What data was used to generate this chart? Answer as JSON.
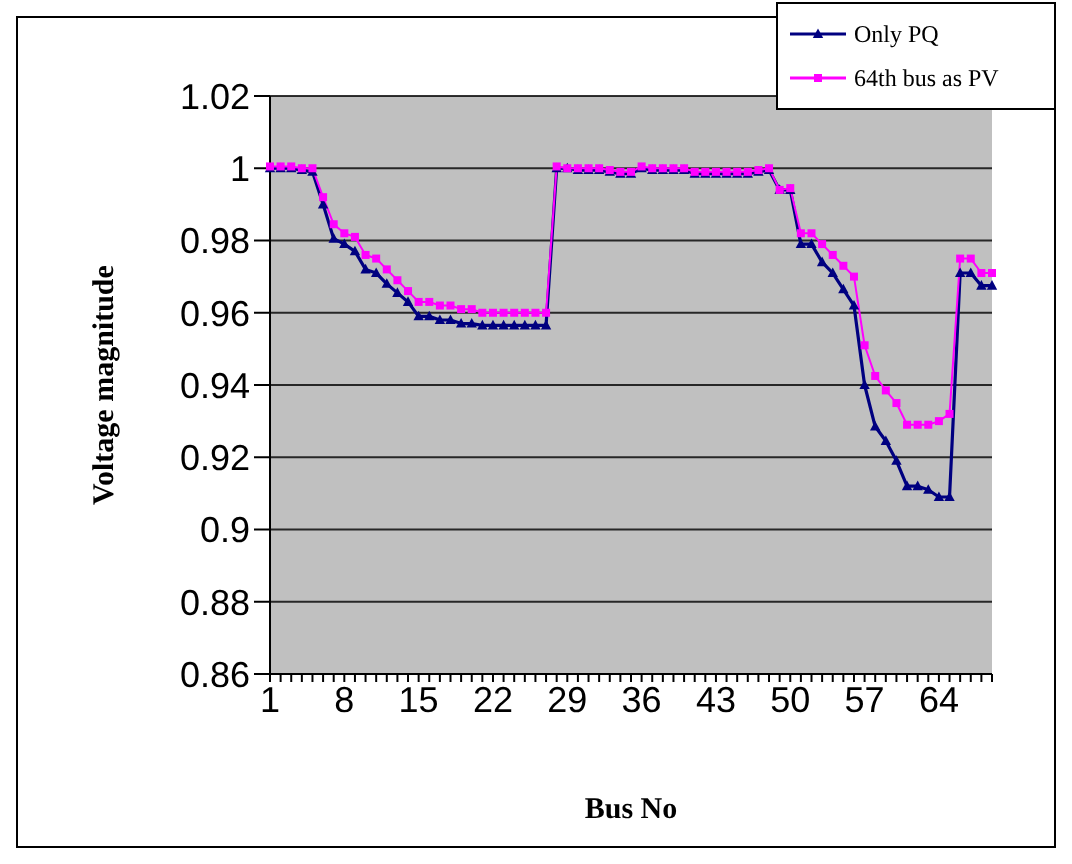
{
  "chart_data": {
    "type": "line",
    "xlabel": "Bus No",
    "ylabel": "Voltage magnitude",
    "categories": [
      "1",
      null,
      null,
      null,
      null,
      null,
      null,
      "8",
      null,
      null,
      null,
      null,
      null,
      null,
      "15",
      null,
      null,
      null,
      null,
      null,
      null,
      "22",
      null,
      null,
      null,
      null,
      null,
      null,
      "29",
      null,
      null,
      null,
      null,
      null,
      null,
      "36",
      null,
      null,
      null,
      null,
      null,
      null,
      "43",
      null,
      null,
      null,
      null,
      null,
      null,
      "50",
      null,
      null,
      null,
      null,
      null,
      null,
      "57",
      null,
      null,
      null,
      null,
      null,
      null,
      "64",
      null,
      null,
      null,
      null,
      null
    ],
    "series": [
      {
        "name": "Only PQ",
        "color": "#000080",
        "marker": "triangle",
        "values": [
          1.0,
          1.0,
          1.0,
          0.9995,
          0.999,
          0.99,
          0.9805,
          0.979,
          0.977,
          0.972,
          0.971,
          0.968,
          0.9655,
          0.963,
          0.959,
          0.959,
          0.958,
          0.958,
          0.957,
          0.957,
          0.9565,
          0.9565,
          0.9565,
          0.9565,
          0.9565,
          0.9565,
          0.9565,
          1.0,
          1.0,
          0.9995,
          0.9995,
          0.9995,
          0.999,
          0.9985,
          0.9985,
          1.0,
          0.9995,
          0.9995,
          0.9995,
          0.9995,
          0.9985,
          0.9985,
          0.9985,
          0.9985,
          0.9985,
          0.9985,
          0.999,
          0.9995,
          0.994,
          0.994,
          0.979,
          0.979,
          0.974,
          0.971,
          0.9665,
          0.962,
          0.94,
          0.9285,
          0.9245,
          0.919,
          0.912,
          0.912,
          0.911,
          0.909,
          0.909,
          0.971,
          0.971,
          0.9675,
          0.9675
        ]
      },
      {
        "name": "64th bus as PV",
        "color": "#ff00ff",
        "marker": "square",
        "values": [
          1.0005,
          1.0005,
          1.0005,
          1.0,
          1.0,
          0.992,
          0.9845,
          0.982,
          0.981,
          0.976,
          0.975,
          0.972,
          0.969,
          0.966,
          0.963,
          0.963,
          0.962,
          0.962,
          0.961,
          0.961,
          0.96,
          0.96,
          0.96,
          0.96,
          0.96,
          0.96,
          0.96,
          1.0005,
          1.0,
          1.0,
          1.0,
          1.0,
          0.9995,
          0.999,
          0.999,
          1.0005,
          1.0,
          1.0,
          1.0,
          1.0,
          0.999,
          0.999,
          0.999,
          0.999,
          0.999,
          0.999,
          0.9995,
          1.0,
          0.994,
          0.9945,
          0.982,
          0.982,
          0.979,
          0.976,
          0.973,
          0.97,
          0.951,
          0.9425,
          0.9385,
          0.935,
          0.929,
          0.929,
          0.929,
          0.93,
          0.932,
          0.975,
          0.975,
          0.971,
          0.971
        ]
      }
    ],
    "ylim": [
      0.86,
      1.02
    ],
    "yticks": [
      0.86,
      0.88,
      0.9,
      0.92,
      0.94,
      0.96,
      0.98,
      1,
      1.02
    ],
    "grid": "y",
    "legend": "top right"
  }
}
